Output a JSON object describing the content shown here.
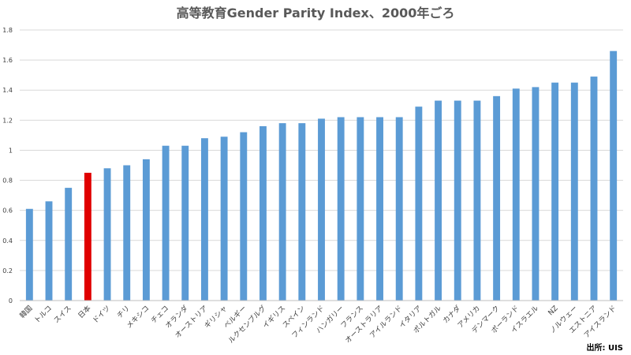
{
  "chart_data": {
    "type": "bar",
    "title": "高等教育Gender Parity Index、2000年ごろ",
    "source": "出所: UIS",
    "xlabel": "",
    "ylabel": "",
    "ylim": [
      0,
      1.8
    ],
    "yticks": [
      "0",
      "0.2",
      "0.4",
      "0.6",
      "0.8",
      "1",
      "1.2",
      "1.4",
      "1.6",
      "1.8"
    ],
    "grid": true,
    "legend": "none",
    "bar_color": "#5b9bd5",
    "highlight_color": "#e00000",
    "highlight_category": "日本",
    "categories": [
      "韓国",
      "トルコ",
      "スイス",
      "日本",
      "ドイツ",
      "チリ",
      "メキシコ",
      "チェコ",
      "オランダ",
      "オーストリア",
      "ギリシャ",
      "ベルギー",
      "ルクセンブルグ",
      "イギリス",
      "スペイン",
      "フィンランド",
      "ハンガリー",
      "フランス",
      "オーストラリア",
      "アイルランド",
      "イタリア",
      "ポルトガル",
      "カナダ",
      "アメリカ",
      "デンマーク",
      "ポーランド",
      "イスラエル",
      "NZ",
      "ノルウェー",
      "エストニア",
      "アイスランド"
    ],
    "values": [
      0.61,
      0.66,
      0.75,
      0.85,
      0.88,
      0.9,
      0.94,
      1.03,
      1.03,
      1.08,
      1.09,
      1.12,
      1.16,
      1.18,
      1.18,
      1.21,
      1.22,
      1.22,
      1.22,
      1.22,
      1.29,
      1.33,
      1.33,
      1.33,
      1.36,
      1.41,
      1.42,
      1.45,
      1.45,
      1.49,
      1.66
    ]
  }
}
